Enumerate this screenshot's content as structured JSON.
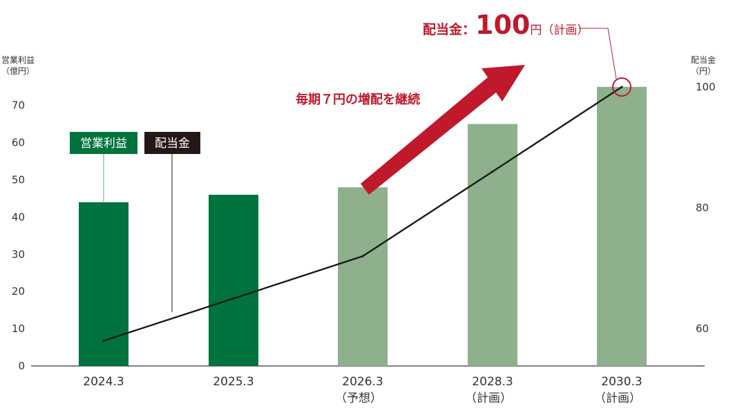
{
  "chart_data": {
    "type": "bar+line",
    "categories": [
      "2024.3",
      "2025.3",
      "2026.3",
      "2028.3",
      "2030.3"
    ],
    "category_notes": [
      "",
      "",
      "（予想）",
      "（計画）",
      "（計画）"
    ],
    "bar_series": {
      "name": "営業利益",
      "values": [
        44,
        46,
        48,
        65,
        75
      ],
      "colors": [
        "#00733e",
        "#00733e",
        "#8eb08c",
        "#8eb08c",
        "#8eb08c"
      ]
    },
    "line_series": {
      "name": "配当金",
      "values": [
        58,
        65,
        72,
        86,
        100
      ],
      "color": "#1a1a1a"
    },
    "y_left": {
      "label_line1": "営業利益",
      "label_line2": "（億円）",
      "ticks": [
        0,
        10,
        20,
        30,
        40,
        50,
        60,
        70
      ],
      "ylim": [
        0,
        75
      ]
    },
    "y_right": {
      "label_line1": "配当金",
      "label_line2": "（円）",
      "ticks": [
        60,
        80,
        100
      ]
    },
    "legend": [
      {
        "label": "営業利益",
        "color": "#00733e"
      },
      {
        "label": "配当金",
        "color": "#231815"
      }
    ],
    "annotations": {
      "arrow_text": "毎期７円の増配を継続",
      "callout_prefix": "配当金：",
      "callout_value": "100",
      "callout_suffix": "円（計画）",
      "highlight_color": "#c0192c"
    }
  }
}
